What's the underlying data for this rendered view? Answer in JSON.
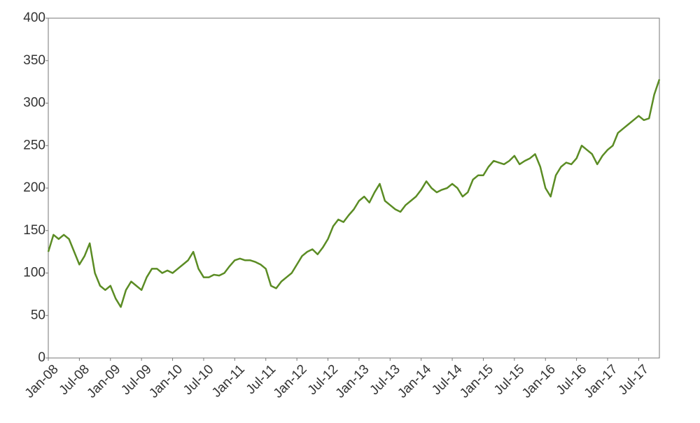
{
  "chart_data": {
    "type": "line",
    "color": "#5b8c24",
    "x": [
      "Jan-08",
      "Feb-08",
      "Mar-08",
      "Apr-08",
      "May-08",
      "Jun-08",
      "Jul-08",
      "Aug-08",
      "Sep-08",
      "Oct-08",
      "Nov-08",
      "Dec-08",
      "Jan-09",
      "Feb-09",
      "Mar-09",
      "Apr-09",
      "May-09",
      "Jun-09",
      "Jul-09",
      "Aug-09",
      "Sep-09",
      "Oct-09",
      "Nov-09",
      "Dec-09",
      "Jan-10",
      "Feb-10",
      "Mar-10",
      "Apr-10",
      "May-10",
      "Jun-10",
      "Jul-10",
      "Aug-10",
      "Sep-10",
      "Oct-10",
      "Nov-10",
      "Dec-10",
      "Jan-11",
      "Feb-11",
      "Mar-11",
      "Apr-11",
      "May-11",
      "Jun-11",
      "Jul-11",
      "Aug-11",
      "Sep-11",
      "Oct-11",
      "Nov-11",
      "Dec-11",
      "Jan-12",
      "Feb-12",
      "Mar-12",
      "Apr-12",
      "May-12",
      "Jun-12",
      "Jul-12",
      "Aug-12",
      "Sep-12",
      "Oct-12",
      "Nov-12",
      "Dec-12",
      "Jan-13",
      "Feb-13",
      "Mar-13",
      "Apr-13",
      "May-13",
      "Jun-13",
      "Jul-13",
      "Aug-13",
      "Sep-13",
      "Oct-13",
      "Nov-13",
      "Dec-13",
      "Jan-14",
      "Feb-14",
      "Mar-14",
      "Apr-14",
      "May-14",
      "Jun-14",
      "Jul-14",
      "Aug-14",
      "Sep-14",
      "Oct-14",
      "Nov-14",
      "Dec-14",
      "Jan-15",
      "Feb-15",
      "Mar-15",
      "Apr-15",
      "May-15",
      "Jun-15",
      "Jul-15",
      "Aug-15",
      "Sep-15",
      "Oct-15",
      "Nov-15",
      "Dec-15",
      "Jan-16",
      "Feb-16",
      "Mar-16",
      "Apr-16",
      "May-16",
      "Jun-16",
      "Jul-16",
      "Aug-16",
      "Sep-16",
      "Oct-16",
      "Nov-16",
      "Dec-16",
      "Jan-17",
      "Feb-17",
      "Mar-17",
      "Apr-17",
      "May-17",
      "Jun-17",
      "Jul-17",
      "Aug-17",
      "Sep-17",
      "Oct-17",
      "Nov-17"
    ],
    "values": [
      125,
      145,
      140,
      145,
      140,
      125,
      110,
      120,
      135,
      100,
      85,
      80,
      85,
      70,
      60,
      80,
      90,
      85,
      80,
      95,
      105,
      105,
      100,
      103,
      100,
      105,
      110,
      115,
      125,
      105,
      95,
      95,
      98,
      97,
      100,
      108,
      115,
      117,
      115,
      115,
      113,
      110,
      105,
      85,
      82,
      90,
      95,
      100,
      110,
      120,
      125,
      128,
      122,
      130,
      140,
      155,
      163,
      160,
      168,
      175,
      185,
      190,
      183,
      195,
      205,
      185,
      180,
      175,
      172,
      180,
      185,
      190,
      198,
      208,
      200,
      195,
      198,
      200,
      205,
      200,
      190,
      195,
      210,
      215,
      215,
      225,
      232,
      230,
      228,
      232,
      238,
      228,
      232,
      235,
      240,
      225,
      200,
      190,
      215,
      225,
      230,
      228,
      235,
      250,
      245,
      240,
      228,
      238,
      245,
      250,
      265,
      270,
      275,
      280,
      285,
      280,
      282,
      310,
      328
    ],
    "xticks": [
      "Jan-08",
      "Jul-08",
      "Jan-09",
      "Jul-09",
      "Jan-10",
      "Jul-10",
      "Jan-11",
      "Jul-11",
      "Jan-12",
      "Jul-12",
      "Jan-13",
      "Jul-13",
      "Jan-14",
      "Jul-14",
      "Jan-15",
      "Jul-15",
      "Jan-16",
      "Jul-16",
      "Jan-17",
      "Jul-17"
    ],
    "ylim": [
      0,
      400
    ],
    "yticks": [
      0,
      50,
      100,
      150,
      200,
      250,
      300,
      350,
      400
    ]
  }
}
